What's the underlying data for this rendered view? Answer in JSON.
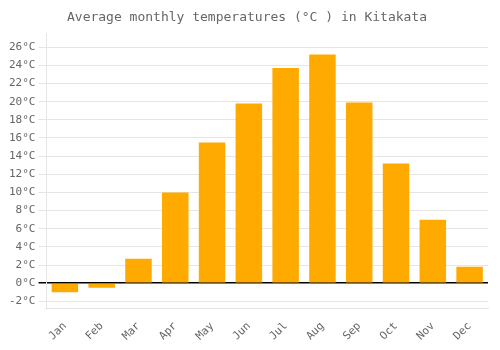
{
  "chart_data": {
    "type": "bar",
    "title": "Average monthly temperatures (°C ) in Kitakata",
    "categories": [
      "Jan",
      "Feb",
      "Mar",
      "Apr",
      "May",
      "Jun",
      "Jul",
      "Aug",
      "Sep",
      "Oct",
      "Nov",
      "Dec"
    ],
    "values": [
      -1.0,
      -0.5,
      2.7,
      10.0,
      15.5,
      19.8,
      23.7,
      25.2,
      19.9,
      13.2,
      7.0,
      1.8
    ],
    "color": "#FFAA00",
    "ylim": [
      -2.8,
      27.5
    ],
    "yticks": [
      {
        "value": -2,
        "label": "-2°C"
      },
      {
        "value": 0,
        "label": "0°C"
      },
      {
        "value": 2,
        "label": "2°C"
      },
      {
        "value": 4,
        "label": "4°C"
      },
      {
        "value": 6,
        "label": "6°C"
      },
      {
        "value": 8,
        "label": "8°C"
      },
      {
        "value": 10,
        "label": "10°C"
      },
      {
        "value": 12,
        "label": "12°C"
      },
      {
        "value": 14,
        "label": "14°C"
      },
      {
        "value": 16,
        "label": "16°C"
      },
      {
        "value": 18,
        "label": "18°C"
      },
      {
        "value": 20,
        "label": "20°C"
      },
      {
        "value": 22,
        "label": "22°C"
      },
      {
        "value": 24,
        "label": "24°C"
      },
      {
        "value": 26,
        "label": "26°C"
      }
    ],
    "grid": true
  }
}
